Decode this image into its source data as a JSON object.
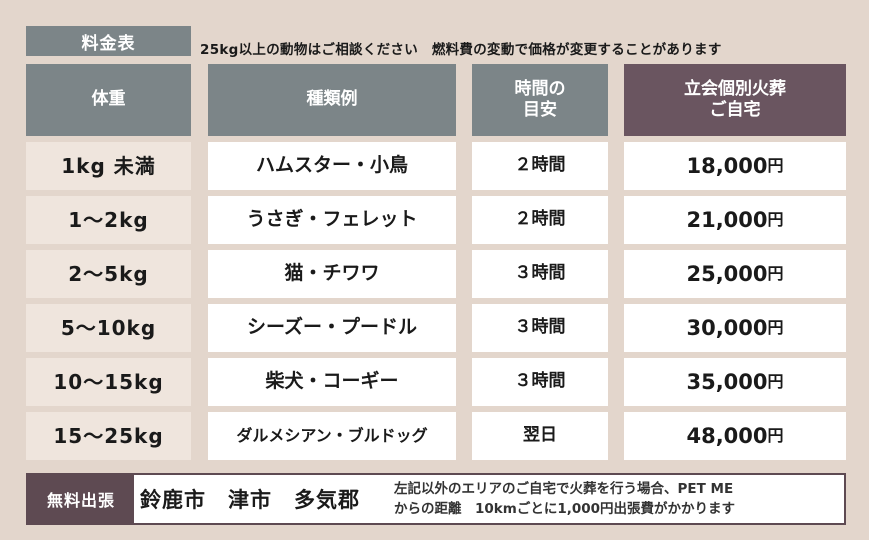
{
  "tag": "料金表",
  "note": "25kg以上の動物はご相談ください　燃料費の変動で価格が変更することがあります",
  "headers": {
    "weight": "体重",
    "kind": "種類例",
    "time_l1": "時間の",
    "time_l2": "目安",
    "price_l1": "立会個別火葬",
    "price_l2": "ご自宅"
  },
  "rows": [
    {
      "weight": "1kg 未満",
      "kind": "ハムスター・小鳥",
      "time": "２時間",
      "price": "18,000",
      "unit": "円"
    },
    {
      "weight": "1～2kg",
      "kind": "うさぎ・フェレット",
      "time": "２時間",
      "price": "21,000",
      "unit": "円"
    },
    {
      "weight": "2～5kg",
      "kind": "猫・チワワ",
      "time": "３時間",
      "price": "25,000",
      "unit": "円"
    },
    {
      "weight": "5～10kg",
      "kind": "シーズー・プードル",
      "time": "３時間",
      "price": "30,000",
      "unit": "円"
    },
    {
      "weight": "10～15kg",
      "kind": "柴犬・コーギー",
      "time": "３時間",
      "price": "35,000",
      "unit": "円"
    },
    {
      "weight": "15～25kg",
      "kind": "ダルメシアン・ブルドッグ",
      "time": "翌日",
      "price": "48,000",
      "unit": "円"
    }
  ],
  "footer": {
    "label": "無料出張",
    "areas": "鈴鹿市　津市　多気郡",
    "note_l1": "左記以外のエリアのご自宅で火葬を行う場合、PET ME",
    "note_l2": "からの距離　10kmごとに1,000円出張費がかかります"
  }
}
